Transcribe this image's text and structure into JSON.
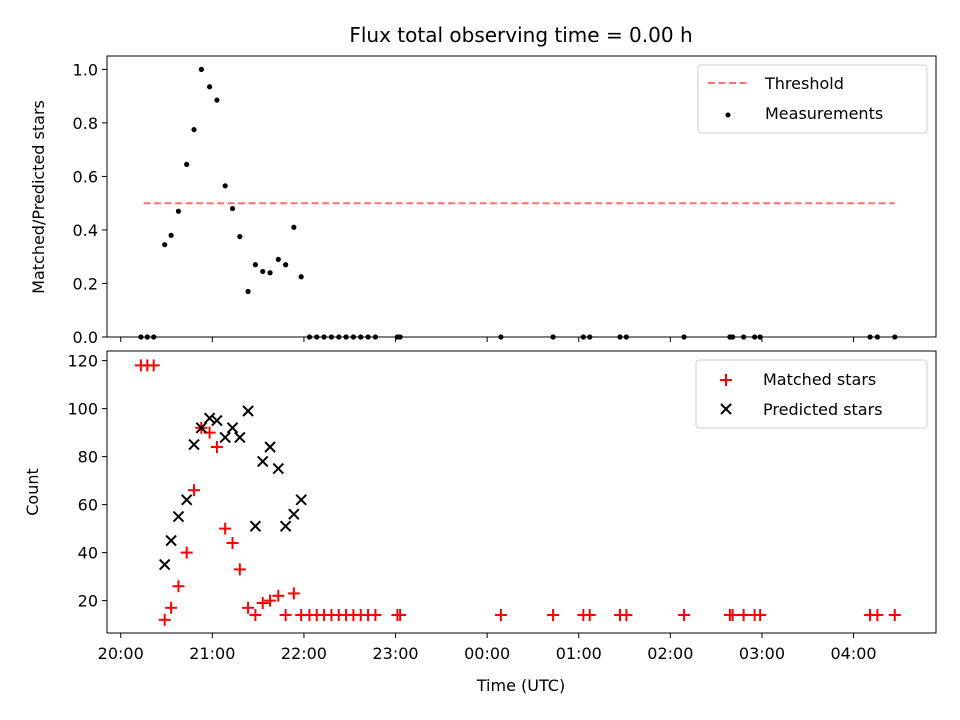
{
  "chart_data": {
    "type": "scatter",
    "title": "Flux total observing time = 0.00 h",
    "xlabel": "Time (UTC)",
    "x_ticks": [
      "20:00",
      "21:00",
      "22:00",
      "23:00",
      "00:00",
      "01:00",
      "02:00",
      "03:00",
      "04:00"
    ],
    "x_range_hours": [
      19.85,
      28.9
    ],
    "legend_placement": "top-right",
    "panels": [
      {
        "id": "ratio",
        "ylabel": "Matched/Predicted stars",
        "ylim": [
          0,
          1.05
        ],
        "y_ticks": [
          "0.0",
          "0.2",
          "0.4",
          "0.6",
          "0.8",
          "1.0"
        ],
        "threshold": {
          "name": "Threshold",
          "value": 0.5,
          "x_range": [
            20.25,
            28.45
          ],
          "color": "#ff7070"
        },
        "series": [
          {
            "name": "Measurements",
            "color": "#000000",
            "marker": "dot",
            "x": [
              20.22,
              20.29,
              20.36,
              20.48,
              20.55,
              20.63,
              20.72,
              20.8,
              20.88,
              20.97,
              21.05,
              21.14,
              21.22,
              21.3,
              21.39,
              21.47,
              21.55,
              21.63,
              21.72,
              21.8,
              21.89,
              21.97,
              22.06,
              22.14,
              22.22,
              22.3,
              22.38,
              22.46,
              22.54,
              22.62,
              22.7,
              22.78,
              23.02,
              23.05,
              24.15,
              24.72,
              25.05,
              25.12,
              25.45,
              25.52,
              26.15,
              26.65,
              26.68,
              26.8,
              26.92,
              26.98,
              28.18,
              28.26,
              28.45
            ],
            "y": [
              0.0,
              0.0,
              0.0,
              0.345,
              0.38,
              0.47,
              0.645,
              0.775,
              1.0,
              0.935,
              0.885,
              0.565,
              0.48,
              0.375,
              0.17,
              0.27,
              0.245,
              0.24,
              0.29,
              0.27,
              0.41,
              0.225,
              0.0,
              0.0,
              0.0,
              0.0,
              0.0,
              0.0,
              0.0,
              0.0,
              0.0,
              0.0,
              0.0,
              0.0,
              0.0,
              0.0,
              0.0,
              0.0,
              0.0,
              0.0,
              0.0,
              0.0,
              0.0,
              0.0,
              0.0,
              0.0,
              0.0,
              0.0,
              0.0
            ]
          }
        ]
      },
      {
        "id": "counts",
        "ylabel": "Count",
        "ylim": [
          6.5,
          124
        ],
        "y_ticks": [
          "20",
          "40",
          "60",
          "80",
          "100",
          "120"
        ],
        "series": [
          {
            "name": "Matched stars",
            "color": "#ff0000",
            "marker": "plus",
            "x": [
              20.22,
              20.29,
              20.36,
              20.48,
              20.55,
              20.63,
              20.72,
              20.8,
              20.88,
              20.97,
              21.05,
              21.14,
              21.22,
              21.3,
              21.39,
              21.47,
              21.55,
              21.63,
              21.72,
              21.8,
              21.89,
              21.97,
              22.06,
              22.14,
              22.22,
              22.3,
              22.38,
              22.46,
              22.54,
              22.62,
              22.7,
              22.78,
              23.02,
              23.05,
              24.15,
              24.72,
              25.05,
              25.12,
              25.45,
              25.52,
              26.15,
              26.65,
              26.68,
              26.8,
              26.92,
              26.98,
              28.18,
              28.26,
              28.45
            ],
            "y": [
              118,
              118,
              118,
              12,
              17,
              26,
              40,
              66,
              92,
              90,
              84,
              50,
              44,
              33,
              17,
              14,
              19,
              20,
              22,
              14,
              23,
              14,
              14,
              14,
              14,
              14,
              14,
              14,
              14,
              14,
              14,
              14,
              14,
              14,
              14,
              14,
              14,
              14,
              14,
              14,
              14,
              14,
              14,
              14,
              14,
              14,
              14,
              14,
              14
            ]
          },
          {
            "name": "Predicted stars",
            "color": "#000000",
            "marker": "x",
            "x": [
              20.48,
              20.55,
              20.63,
              20.72,
              20.8,
              20.88,
              20.97,
              21.05,
              21.14,
              21.22,
              21.3,
              21.39,
              21.47,
              21.55,
              21.63,
              21.72,
              21.8,
              21.89,
              21.97
            ],
            "y": [
              35,
              45,
              55,
              62,
              85,
              92,
              96,
              95,
              88,
              92,
              88,
              99,
              51,
              78,
              84,
              75,
              51,
              56,
              62
            ]
          }
        ]
      }
    ]
  }
}
